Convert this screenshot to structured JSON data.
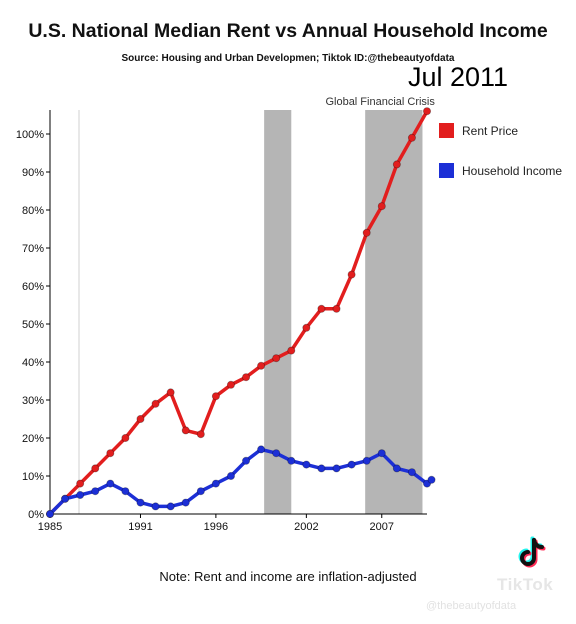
{
  "title": "U.S. National Median Rent vs Annual Household Income",
  "subtitle": "Source: Housing and Urban Developmen;  Tiktok ID:@thebeautyofdata",
  "date_label": "Jul 2011",
  "note": "Note: Rent and income are inflation-adjusted",
  "watermark": {
    "brand": "TikTok",
    "handle": "@thebeautyofdata"
  },
  "colors": {
    "rent": "#e21e1e",
    "income": "#1c2fd6",
    "recession": "#b5b5b5"
  },
  "chart_data": {
    "type": "line",
    "title": "U.S. National Median Rent vs Annual Household Income",
    "xlabel": "",
    "ylabel": "",
    "xlim": [
      1985,
      2010
    ],
    "ylim": [
      0,
      100
    ],
    "x_ticks": [
      1985,
      1991,
      1996,
      2002,
      2007
    ],
    "y_ticks": [
      0,
      10,
      20,
      30,
      40,
      50,
      60,
      70,
      80,
      90,
      100
    ],
    "y_tick_labels": [
      "0%",
      "10%",
      "20%",
      "30%",
      "40%",
      "50%",
      "60%",
      "70%",
      "80%",
      "90%",
      "100%"
    ],
    "grid": false,
    "legend_position": "right",
    "shaded_regions": [
      {
        "start": 1999.2,
        "end": 2001.0,
        "label": ""
      },
      {
        "start": 2005.9,
        "end": 2009.7,
        "label": "Global Financial Crisis"
      }
    ],
    "series": [
      {
        "name": "Rent Price",
        "color": "#e21e1e",
        "x": [
          1985,
          1986,
          1987,
          1988,
          1989,
          1990,
          1991,
          1992,
          1993,
          1994,
          1995,
          1996,
          1997,
          1998,
          1999,
          2000,
          2001,
          2002,
          2003,
          2004,
          2005,
          2006,
          2007,
          2008,
          2009,
          2010
        ],
        "values": [
          0,
          4,
          8,
          12,
          16,
          20,
          25,
          29,
          32,
          22,
          21,
          31,
          34,
          36,
          39,
          41,
          43,
          49,
          54,
          54,
          63,
          74,
          81,
          92,
          99,
          106
        ]
      },
      {
        "name": "Household Income",
        "color": "#1c2fd6",
        "x": [
          1985,
          1986,
          1987,
          1988,
          1989,
          1990,
          1991,
          1992,
          1993,
          1994,
          1995,
          1996,
          1997,
          1998,
          1999,
          2000,
          2001,
          2002,
          2003,
          2004,
          2005,
          2006,
          2007,
          2008,
          2009,
          2010
        ],
        "values": [
          0,
          4,
          5,
          6,
          8,
          6,
          3,
          2,
          2,
          3,
          6,
          8,
          10,
          14,
          17,
          16,
          14,
          13,
          12,
          12,
          13,
          14,
          16,
          12,
          11,
          8
        ]
      }
    ],
    "extra_points": [
      {
        "series": "Household Income",
        "x": 2010.3,
        "y": 9
      }
    ]
  }
}
